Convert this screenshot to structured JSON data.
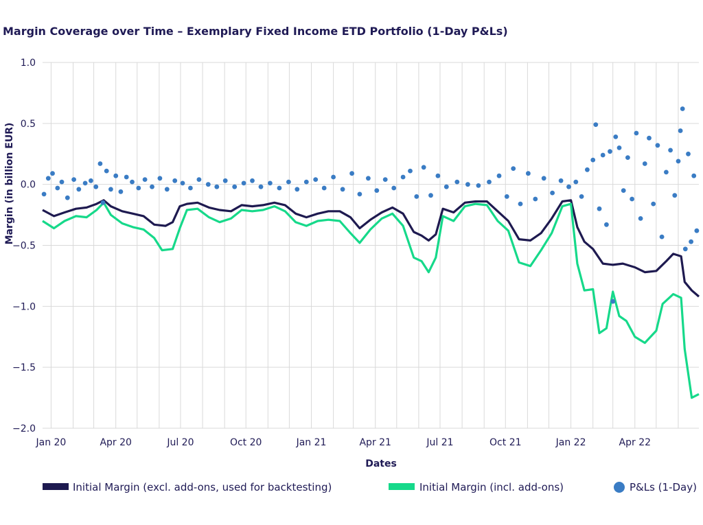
{
  "colors": {
    "im_excl": "#1e1a50",
    "im_incl": "#16d98a",
    "pnl": "#3a7cc4",
    "grid": "#d9d9d9"
  },
  "chart_data": {
    "type": "line",
    "title": "Margin Coverage over Time – Exemplary Fixed Income ETD Portfolio (1-Day P&Ls)",
    "xlabel": "Dates",
    "ylabel": "Margin (in billion EUR)",
    "ylim": [
      -2.0,
      1.0
    ],
    "yticks": [
      1.0,
      0.5,
      0.0,
      -0.5,
      -1.0,
      -1.5,
      -2.0
    ],
    "ytick_labels": [
      "1.0",
      "0.5",
      "0.0",
      "−0.5",
      "−1.0",
      "−1.5",
      "−2.0"
    ],
    "xlim": [
      "2019-12-20",
      "2022-06-30"
    ],
    "xticks": [
      "2020-01-01",
      "2020-04-01",
      "2020-07-01",
      "2020-10-01",
      "2021-01-01",
      "2021-04-01",
      "2021-07-01",
      "2021-10-01",
      "2022-01-01",
      "2022-04-01"
    ],
    "xtick_labels": [
      "Jan 20",
      "Apr 20",
      "Jul 20",
      "Oct 20",
      "Jan 21",
      "Apr 21",
      "Jul 21",
      "Oct 21",
      "Jan 22",
      "Apr 22"
    ],
    "grid": true,
    "legend_position": "bottom",
    "series": [
      {
        "name": "Initial Margin (excl. add-ons, used for backtesting)",
        "kind": "line",
        "color": "#1e1a50",
        "points": [
          [
            "2019-12-20",
            -0.21
          ],
          [
            "2020-01-05",
            -0.26
          ],
          [
            "2020-01-20",
            -0.23
          ],
          [
            "2020-02-05",
            -0.2
          ],
          [
            "2020-02-20",
            -0.19
          ],
          [
            "2020-03-05",
            -0.16
          ],
          [
            "2020-03-15",
            -0.13
          ],
          [
            "2020-03-25",
            -0.18
          ],
          [
            "2020-04-10",
            -0.22
          ],
          [
            "2020-04-25",
            -0.24
          ],
          [
            "2020-05-10",
            -0.26
          ],
          [
            "2020-05-25",
            -0.33
          ],
          [
            "2020-06-10",
            -0.34
          ],
          [
            "2020-06-20",
            -0.31
          ],
          [
            "2020-06-30",
            -0.18
          ],
          [
            "2020-07-10",
            -0.16
          ],
          [
            "2020-07-25",
            -0.15
          ],
          [
            "2020-08-10",
            -0.19
          ],
          [
            "2020-08-25",
            -0.21
          ],
          [
            "2020-09-10",
            -0.22
          ],
          [
            "2020-09-25",
            -0.17
          ],
          [
            "2020-10-10",
            -0.18
          ],
          [
            "2020-10-25",
            -0.17
          ],
          [
            "2020-11-10",
            -0.15
          ],
          [
            "2020-11-25",
            -0.17
          ],
          [
            "2020-12-10",
            -0.24
          ],
          [
            "2020-12-25",
            -0.27
          ],
          [
            "2021-01-10",
            -0.24
          ],
          [
            "2021-01-25",
            -0.22
          ],
          [
            "2021-02-10",
            -0.22
          ],
          [
            "2021-02-25",
            -0.27
          ],
          [
            "2021-03-10",
            -0.36
          ],
          [
            "2021-03-25",
            -0.29
          ],
          [
            "2021-04-10",
            -0.23
          ],
          [
            "2021-04-25",
            -0.19
          ],
          [
            "2021-05-10",
            -0.24
          ],
          [
            "2021-05-25",
            -0.39
          ],
          [
            "2021-06-05",
            -0.42
          ],
          [
            "2021-06-15",
            -0.46
          ],
          [
            "2021-06-25",
            -0.41
          ],
          [
            "2021-07-05",
            -0.2
          ],
          [
            "2021-07-20",
            -0.23
          ],
          [
            "2021-08-05",
            -0.15
          ],
          [
            "2021-08-20",
            -0.14
          ],
          [
            "2021-09-05",
            -0.14
          ],
          [
            "2021-09-20",
            -0.22
          ],
          [
            "2021-10-05",
            -0.3
          ],
          [
            "2021-10-20",
            -0.45
          ],
          [
            "2021-11-05",
            -0.46
          ],
          [
            "2021-11-20",
            -0.4
          ],
          [
            "2021-12-05",
            -0.28
          ],
          [
            "2021-12-20",
            -0.14
          ],
          [
            "2022-01-01",
            -0.13
          ],
          [
            "2022-01-10",
            -0.35
          ],
          [
            "2022-01-20",
            -0.47
          ],
          [
            "2022-02-01",
            -0.53
          ],
          [
            "2022-02-15",
            -0.65
          ],
          [
            "2022-03-01",
            -0.66
          ],
          [
            "2022-03-15",
            -0.65
          ],
          [
            "2022-04-01",
            -0.68
          ],
          [
            "2022-04-15",
            -0.72
          ],
          [
            "2022-05-01",
            -0.71
          ],
          [
            "2022-05-15",
            -0.63
          ],
          [
            "2022-05-25",
            -0.57
          ],
          [
            "2022-06-05",
            -0.59
          ],
          [
            "2022-06-10",
            -0.8
          ],
          [
            "2022-06-20",
            -0.87
          ],
          [
            "2022-06-30",
            -0.92
          ]
        ]
      },
      {
        "name": "Initial Margin (incl. add-ons)",
        "kind": "line",
        "color": "#16d98a",
        "points": [
          [
            "2019-12-20",
            -0.3
          ],
          [
            "2020-01-05",
            -0.36
          ],
          [
            "2020-01-20",
            -0.3
          ],
          [
            "2020-02-05",
            -0.26
          ],
          [
            "2020-02-20",
            -0.27
          ],
          [
            "2020-03-05",
            -0.21
          ],
          [
            "2020-03-15",
            -0.15
          ],
          [
            "2020-03-25",
            -0.25
          ],
          [
            "2020-04-10",
            -0.32
          ],
          [
            "2020-04-25",
            -0.35
          ],
          [
            "2020-05-10",
            -0.37
          ],
          [
            "2020-05-25",
            -0.44
          ],
          [
            "2020-06-05",
            -0.54
          ],
          [
            "2020-06-20",
            -0.53
          ],
          [
            "2020-06-30",
            -0.36
          ],
          [
            "2020-07-10",
            -0.21
          ],
          [
            "2020-07-25",
            -0.2
          ],
          [
            "2020-08-10",
            -0.27
          ],
          [
            "2020-08-25",
            -0.31
          ],
          [
            "2020-09-10",
            -0.28
          ],
          [
            "2020-09-25",
            -0.21
          ],
          [
            "2020-10-10",
            -0.22
          ],
          [
            "2020-10-25",
            -0.21
          ],
          [
            "2020-11-10",
            -0.18
          ],
          [
            "2020-11-25",
            -0.22
          ],
          [
            "2020-12-10",
            -0.31
          ],
          [
            "2020-12-25",
            -0.34
          ],
          [
            "2021-01-10",
            -0.3
          ],
          [
            "2021-01-25",
            -0.29
          ],
          [
            "2021-02-10",
            -0.3
          ],
          [
            "2021-02-25",
            -0.4
          ],
          [
            "2021-03-10",
            -0.48
          ],
          [
            "2021-03-25",
            -0.37
          ],
          [
            "2021-04-10",
            -0.28
          ],
          [
            "2021-04-25",
            -0.24
          ],
          [
            "2021-05-10",
            -0.34
          ],
          [
            "2021-05-25",
            -0.6
          ],
          [
            "2021-06-05",
            -0.63
          ],
          [
            "2021-06-15",
            -0.72
          ],
          [
            "2021-06-25",
            -0.6
          ],
          [
            "2021-07-05",
            -0.26
          ],
          [
            "2021-07-20",
            -0.3
          ],
          [
            "2021-08-05",
            -0.18
          ],
          [
            "2021-08-20",
            -0.16
          ],
          [
            "2021-09-05",
            -0.17
          ],
          [
            "2021-09-20",
            -0.3
          ],
          [
            "2021-10-05",
            -0.38
          ],
          [
            "2021-10-20",
            -0.64
          ],
          [
            "2021-11-05",
            -0.67
          ],
          [
            "2021-11-20",
            -0.54
          ],
          [
            "2021-12-05",
            -0.4
          ],
          [
            "2021-12-20",
            -0.18
          ],
          [
            "2022-01-01",
            -0.16
          ],
          [
            "2022-01-10",
            -0.65
          ],
          [
            "2022-01-20",
            -0.87
          ],
          [
            "2022-02-01",
            -0.86
          ],
          [
            "2022-02-10",
            -1.22
          ],
          [
            "2022-02-20",
            -1.18
          ],
          [
            "2022-03-01",
            -0.88
          ],
          [
            "2022-03-10",
            -1.08
          ],
          [
            "2022-03-20",
            -1.12
          ],
          [
            "2022-04-01",
            -1.25
          ],
          [
            "2022-04-15",
            -1.3
          ],
          [
            "2022-05-01",
            -1.2
          ],
          [
            "2022-05-10",
            -0.98
          ],
          [
            "2022-05-25",
            -0.9
          ],
          [
            "2022-06-05",
            -0.93
          ],
          [
            "2022-06-10",
            -1.35
          ],
          [
            "2022-06-20",
            -1.75
          ],
          [
            "2022-06-30",
            -1.72
          ]
        ]
      },
      {
        "name": "P&Ls (1-Day)",
        "kind": "scatter",
        "color": "#3a7cc4",
        "points": [
          [
            "2019-12-22",
            -0.08
          ],
          [
            "2019-12-28",
            0.05
          ],
          [
            "2020-01-03",
            0.09
          ],
          [
            "2020-01-10",
            -0.03
          ],
          [
            "2020-01-16",
            0.02
          ],
          [
            "2020-01-24",
            -0.11
          ],
          [
            "2020-02-02",
            0.04
          ],
          [
            "2020-02-09",
            -0.04
          ],
          [
            "2020-02-18",
            0.01
          ],
          [
            "2020-02-26",
            0.03
          ],
          [
            "2020-03-04",
            -0.02
          ],
          [
            "2020-03-10",
            0.17
          ],
          [
            "2020-03-14",
            -0.15
          ],
          [
            "2020-03-19",
            0.11
          ],
          [
            "2020-03-25",
            -0.04
          ],
          [
            "2020-04-01",
            0.07
          ],
          [
            "2020-04-08",
            -0.06
          ],
          [
            "2020-04-16",
            0.06
          ],
          [
            "2020-04-24",
            0.02
          ],
          [
            "2020-05-03",
            -0.03
          ],
          [
            "2020-05-12",
            0.04
          ],
          [
            "2020-05-22",
            -0.02
          ],
          [
            "2020-06-02",
            0.05
          ],
          [
            "2020-06-12",
            -0.04
          ],
          [
            "2020-06-23",
            0.03
          ],
          [
            "2020-07-04",
            0.01
          ],
          [
            "2020-07-15",
            -0.03
          ],
          [
            "2020-07-27",
            0.04
          ],
          [
            "2020-08-09",
            0.0
          ],
          [
            "2020-08-21",
            -0.02
          ],
          [
            "2020-09-02",
            0.03
          ],
          [
            "2020-09-15",
            -0.02
          ],
          [
            "2020-09-28",
            0.01
          ],
          [
            "2020-10-10",
            0.03
          ],
          [
            "2020-10-22",
            -0.02
          ],
          [
            "2020-11-04",
            0.01
          ],
          [
            "2020-11-17",
            -0.03
          ],
          [
            "2020-11-30",
            0.02
          ],
          [
            "2020-12-12",
            -0.04
          ],
          [
            "2020-12-25",
            0.02
          ],
          [
            "2021-01-07",
            0.04
          ],
          [
            "2021-01-19",
            -0.03
          ],
          [
            "2021-02-01",
            0.06
          ],
          [
            "2021-02-14",
            -0.04
          ],
          [
            "2021-02-27",
            0.09
          ],
          [
            "2021-03-10",
            -0.08
          ],
          [
            "2021-03-22",
            0.05
          ],
          [
            "2021-04-03",
            -0.05
          ],
          [
            "2021-04-15",
            0.04
          ],
          [
            "2021-04-27",
            -0.03
          ],
          [
            "2021-05-10",
            0.06
          ],
          [
            "2021-05-20",
            0.11
          ],
          [
            "2021-05-29",
            -0.1
          ],
          [
            "2021-06-08",
            0.14
          ],
          [
            "2021-06-18",
            -0.09
          ],
          [
            "2021-06-28",
            0.07
          ],
          [
            "2021-07-10",
            -0.02
          ],
          [
            "2021-07-25",
            0.02
          ],
          [
            "2021-08-09",
            0.0
          ],
          [
            "2021-08-24",
            -0.01
          ],
          [
            "2021-09-08",
            0.02
          ],
          [
            "2021-09-22",
            0.07
          ],
          [
            "2021-10-03",
            -0.1
          ],
          [
            "2021-10-12",
            0.13
          ],
          [
            "2021-10-22",
            -0.16
          ],
          [
            "2021-11-02",
            0.09
          ],
          [
            "2021-11-12",
            -0.12
          ],
          [
            "2021-11-24",
            0.05
          ],
          [
            "2021-12-06",
            -0.07
          ],
          [
            "2021-12-18",
            0.03
          ],
          [
            "2021-12-29",
            -0.02
          ],
          [
            "2022-01-08",
            0.02
          ],
          [
            "2022-01-16",
            -0.1
          ],
          [
            "2022-01-24",
            0.12
          ],
          [
            "2022-02-01",
            0.2
          ],
          [
            "2022-02-05",
            0.49
          ],
          [
            "2022-02-10",
            -0.2
          ],
          [
            "2022-02-15",
            0.24
          ],
          [
            "2022-02-20",
            -0.33
          ],
          [
            "2022-02-25",
            0.27
          ],
          [
            "2022-03-01",
            -0.96
          ],
          [
            "2022-03-05",
            0.39
          ],
          [
            "2022-03-10",
            0.3
          ],
          [
            "2022-03-16",
            -0.05
          ],
          [
            "2022-03-22",
            0.22
          ],
          [
            "2022-03-28",
            -0.12
          ],
          [
            "2022-04-03",
            0.42
          ],
          [
            "2022-04-09",
            -0.28
          ],
          [
            "2022-04-15",
            0.17
          ],
          [
            "2022-04-21",
            0.38
          ],
          [
            "2022-04-27",
            -0.16
          ],
          [
            "2022-05-03",
            0.32
          ],
          [
            "2022-05-09",
            -0.43
          ],
          [
            "2022-05-15",
            0.1
          ],
          [
            "2022-05-21",
            0.28
          ],
          [
            "2022-05-27",
            -0.09
          ],
          [
            "2022-06-01",
            0.19
          ],
          [
            "2022-06-04",
            0.44
          ],
          [
            "2022-06-07",
            0.62
          ],
          [
            "2022-06-11",
            -0.53
          ],
          [
            "2022-06-15",
            0.25
          ],
          [
            "2022-06-19",
            -0.47
          ],
          [
            "2022-06-23",
            0.07
          ],
          [
            "2022-06-27",
            -0.38
          ]
        ]
      }
    ]
  },
  "legend": {
    "items": [
      {
        "label": "Initial Margin (excl. add-ons, used for backtesting)"
      },
      {
        "label": "Initial Margin (incl. add-ons)"
      },
      {
        "label": "P&Ls (1-Day)"
      }
    ]
  }
}
